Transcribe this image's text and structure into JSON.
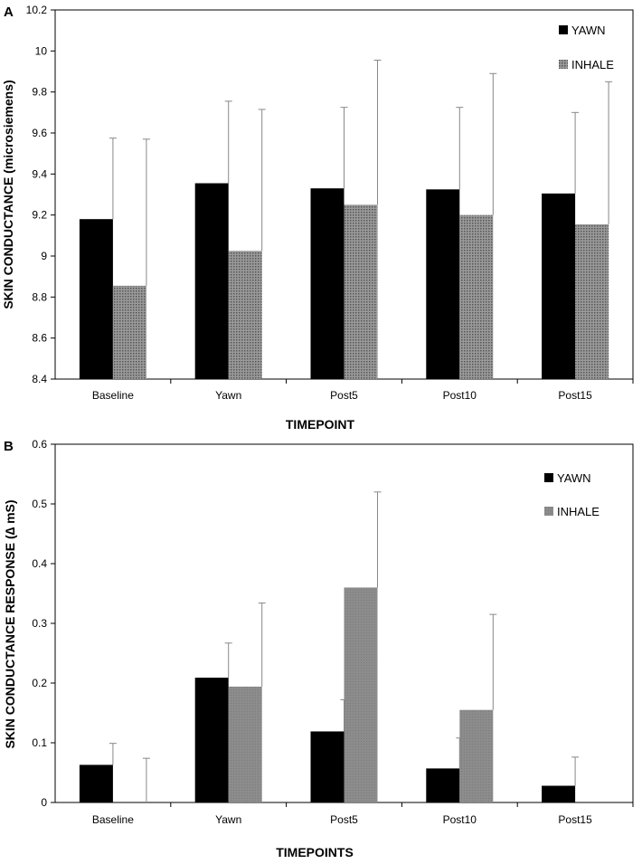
{
  "chart_data": [
    {
      "panel": "A",
      "type": "bar",
      "categories": [
        "Baseline",
        "Yawn",
        "Post5",
        "Post10",
        "Post15"
      ],
      "series": [
        {
          "name": "YAWN",
          "color": "#000000",
          "pattern": "solid",
          "values": [
            9.18,
            9.355,
            9.33,
            9.325,
            9.305
          ],
          "error": [
            0.395,
            0.4,
            0.395,
            0.4,
            0.395
          ]
        },
        {
          "name": "INHALE",
          "color": "#888888",
          "pattern": "dotted",
          "values": [
            8.855,
            9.025,
            9.25,
            9.2,
            9.155
          ],
          "error": [
            0.715,
            0.69,
            0.705,
            0.69,
            0.695
          ]
        }
      ],
      "xlabel": "TIMEPOINT",
      "ylabel": "SKIN CONDUCTANCE (microsiemens)",
      "ylim": [
        8.4,
        10.2
      ],
      "yticks": [
        "8.4",
        "8.6",
        "8.8",
        "9",
        "9.2",
        "9.4",
        "9.6",
        "9.8",
        "10",
        "10.2"
      ],
      "legend_position": "top-right"
    },
    {
      "panel": "B",
      "type": "bar",
      "categories": [
        "Baseline",
        "Yawn",
        "Post5",
        "Post10",
        "Post15"
      ],
      "series": [
        {
          "name": "YAWN",
          "color": "#000000",
          "pattern": "solid",
          "values": [
            0.063,
            0.209,
            0.119,
            0.057,
            0.028
          ],
          "error": [
            0.036,
            0.058,
            0.053,
            0.051,
            0.048
          ]
        },
        {
          "name": "INHALE",
          "color": "#888888",
          "pattern": "hatched",
          "values": [
            0.0,
            0.194,
            0.36,
            0.155,
            0.0
          ],
          "error": [
            0.074,
            0.14,
            0.16,
            0.16,
            0.0
          ]
        }
      ],
      "xlabel": "TIMEPOINTS",
      "ylabel": "SKIN CONDUCTANCE RESPONSE (∆ mS)",
      "ylim": [
        0,
        0.6
      ],
      "yticks": [
        "0",
        "0.1",
        "0.2",
        "0.3",
        "0.4",
        "0.5",
        "0.6"
      ],
      "legend_position": "top-right"
    }
  ]
}
